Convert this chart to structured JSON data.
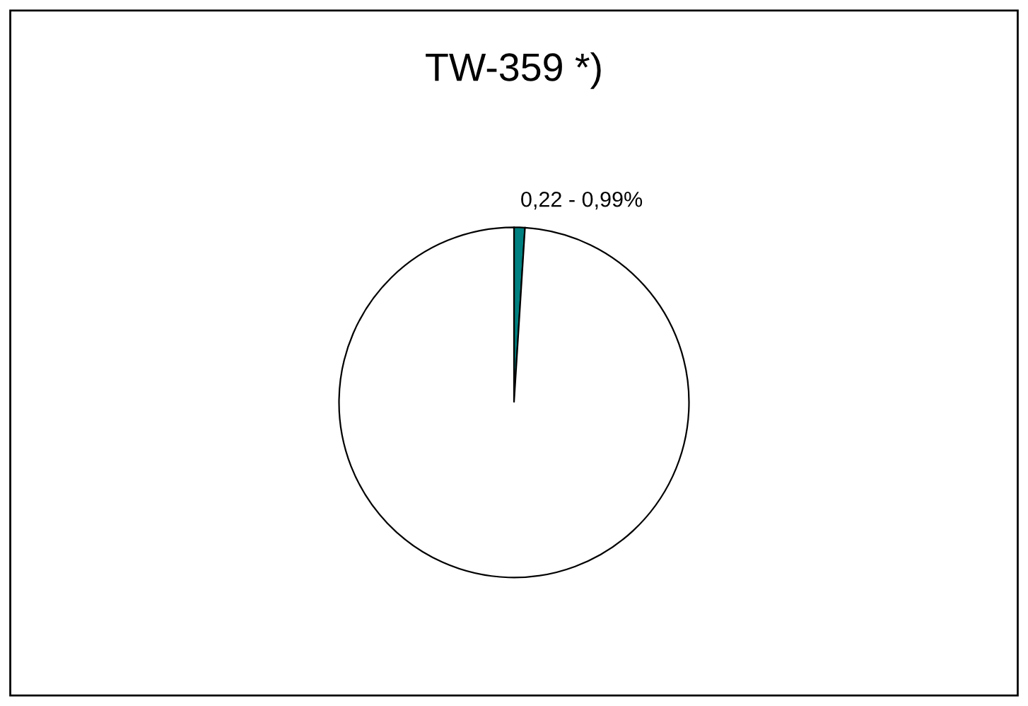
{
  "chart_data": {
    "type": "pie",
    "title": "TW-359 *)",
    "categories": [
      "0,22 - 0,99%",
      null
    ],
    "values": [
      1,
      99
    ],
    "colors": [
      "#008080",
      "#ffffff"
    ]
  }
}
